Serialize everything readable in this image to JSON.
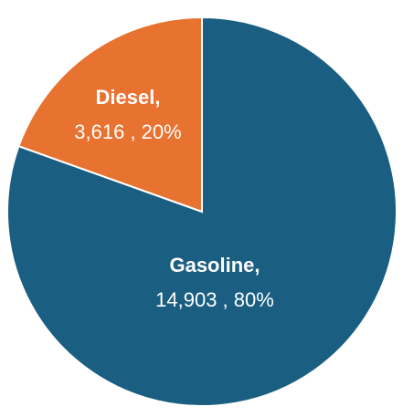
{
  "chart_data": {
    "type": "pie",
    "categories": [
      "Gasoline,",
      "Diesel,"
    ],
    "values": [
      14903,
      3616
    ],
    "value_labels": [
      "14,903 , 80%",
      "3,616 , 20%"
    ],
    "colors": [
      "#1a5e82",
      "#e8722f"
    ]
  }
}
